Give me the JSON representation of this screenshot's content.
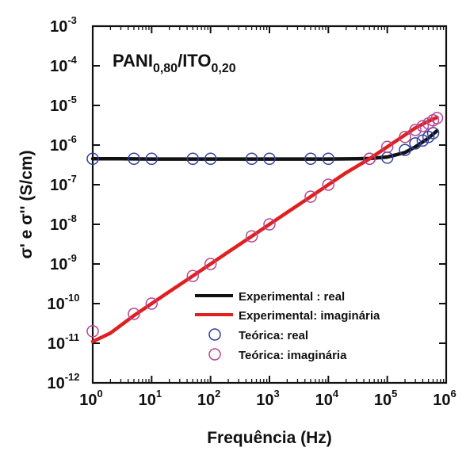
{
  "chart_data": {
    "type": "line",
    "title": "",
    "annotation": {
      "main_1": "PANI",
      "sub_1": "0,80",
      "main_2": "/ITO",
      "sub_2": "0,20"
    },
    "xlabel": "Frequência (Hz)",
    "ylabel": "σ' e σ'' (S/cm)",
    "x_scale": "log",
    "y_scale": "log",
    "xlim": [
      1,
      1000000
    ],
    "ylim": [
      1e-12,
      0.001
    ],
    "x_ticks": [
      {
        "base": "10",
        "exp": "0",
        "value": 1
      },
      {
        "base": "10",
        "exp": "1",
        "value": 10
      },
      {
        "base": "10",
        "exp": "2",
        "value": 100
      },
      {
        "base": "10",
        "exp": "3",
        "value": 1000
      },
      {
        "base": "10",
        "exp": "4",
        "value": 10000
      },
      {
        "base": "10",
        "exp": "5",
        "value": 100000
      },
      {
        "base": "10",
        "exp": "6",
        "value": 1000000
      }
    ],
    "y_ticks": [
      {
        "base": "10",
        "exp": "-12",
        "value": 1e-12
      },
      {
        "base": "10",
        "exp": "-11",
        "value": 1e-11
      },
      {
        "base": "10",
        "exp": "-10",
        "value": 1e-10
      },
      {
        "base": "10",
        "exp": "-9",
        "value": 1e-09
      },
      {
        "base": "10",
        "exp": "-8",
        "value": 1e-08
      },
      {
        "base": "10",
        "exp": "-7",
        "value": 1e-07
      },
      {
        "base": "10",
        "exp": "-6",
        "value": 1e-06
      },
      {
        "base": "10",
        "exp": "-5",
        "value": 1e-05
      },
      {
        "base": "10",
        "exp": "-4",
        "value": 0.0001
      },
      {
        "base": "10",
        "exp": "-3",
        "value": 0.001
      }
    ],
    "legend_position": "bottom-right",
    "grid": false,
    "series": [
      {
        "name": "Experimental : real",
        "kind": "line",
        "color": "#111111",
        "x": [
          1,
          3,
          10,
          30,
          100,
          300,
          1000,
          3000,
          10000,
          30000,
          50000,
          100000,
          200000,
          300000,
          500000,
          700000
        ],
        "y": [
          4.5e-07,
          4.5e-07,
          4.45e-07,
          4.45e-07,
          4.45e-07,
          4.45e-07,
          4.45e-07,
          4.45e-07,
          4.45e-07,
          4.5e-07,
          4.6e-07,
          5e-07,
          6.5e-07,
          9e-07,
          1.5e-06,
          2.3e-06
        ]
      },
      {
        "name": "Experimental: imaginária",
        "kind": "line",
        "color": "#e02020",
        "x": [
          1,
          2,
          5,
          10,
          20,
          50,
          100,
          200,
          500,
          1000,
          2000,
          5000,
          10000,
          20000,
          50000,
          100000,
          200000,
          300000,
          500000,
          700000
        ],
        "y": [
          1.1e-11,
          1.8e-11,
          5e-11,
          1e-10,
          2e-10,
          5e-10,
          1e-09,
          2e-09,
          5e-09,
          1e-08,
          2e-08,
          5e-08,
          1e-07,
          2e-07,
          4.5e-07,
          9e-07,
          1.8e-06,
          2.7e-06,
          4e-06,
          5e-06
        ]
      },
      {
        "name": "Teórica: real",
        "kind": "marker",
        "color": "#2f3f9f",
        "x": [
          1,
          5,
          10,
          50,
          100,
          500,
          1000,
          5000,
          10000,
          50000,
          100000,
          200000,
          300000,
          400000,
          500000,
          600000
        ],
        "y": [
          4.5e-07,
          4.5e-07,
          4.5e-07,
          4.5e-07,
          4.5e-07,
          4.5e-07,
          4.5e-07,
          4.5e-07,
          4.5e-07,
          4.5e-07,
          4.8e-07,
          7.5e-07,
          1.1e-06,
          1.3e-06,
          1.6e-06,
          2e-06
        ]
      },
      {
        "name": "Teórica: imaginária",
        "kind": "marker",
        "color": "#b8478f",
        "x": [
          1,
          5,
          10,
          50,
          100,
          500,
          1000,
          5000,
          10000,
          50000,
          100000,
          200000,
          300000,
          400000,
          500000,
          600000,
          700000
        ],
        "y": [
          2e-11,
          5.5e-11,
          1e-10,
          5e-10,
          1e-09,
          5e-09,
          1e-08,
          5e-08,
          1e-07,
          4.5e-07,
          9e-07,
          1.6e-06,
          2.4e-06,
          3e-06,
          3.5e-06,
          4.2e-06,
          4.8e-06
        ]
      }
    ]
  }
}
